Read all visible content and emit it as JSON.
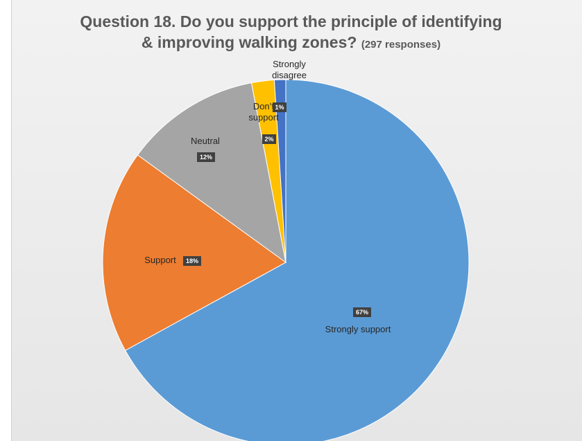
{
  "chart_data": {
    "type": "pie",
    "title_main_line1": "Question 18. Do you support the principle of identifying",
    "title_main_line2": "& improving walking zones?",
    "title_sub": "(297 responses)",
    "slices": [
      {
        "label": "Strongly support",
        "value": 67,
        "value_label": "67%",
        "color": "#5b9bd5"
      },
      {
        "label": "Support",
        "value": 18,
        "value_label": "18%",
        "color": "#ed7d31"
      },
      {
        "label": "Neutral",
        "value": 12,
        "value_label": "12%",
        "color": "#a5a5a5"
      },
      {
        "label": "Don’t support",
        "value": 2,
        "value_label": "2%",
        "color": "#ffc000"
      },
      {
        "label": "Strongly disagree",
        "value": 1,
        "value_label": "1%",
        "color": "#4472c4"
      }
    ]
  }
}
